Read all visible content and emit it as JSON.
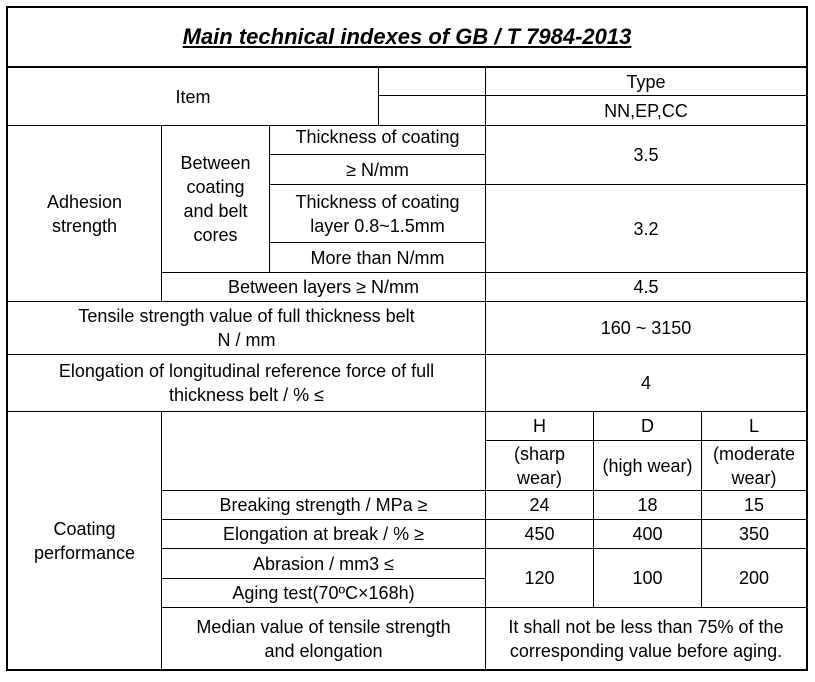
{
  "title": "Main technical indexes of GB / T 7984-2013",
  "header": {
    "item": "Item",
    "type": "Type",
    "type_values": "NN,EP,CC"
  },
  "adhesion": {
    "label": "Adhesion\nstrength",
    "sub_label": "Between\ncoating\nand belt\ncores",
    "thin_line1": "Thickness of coating",
    "thin_line2": "≥ N/mm",
    "thin_value": "3.5",
    "thick_line1": "Thickness of coating\nlayer 0.8~1.5mm",
    "thick_line2": "More than N/mm",
    "thick_value": "3.2",
    "between_layers": "Between layers  ≥ N/mm",
    "between_layers_value": "4.5"
  },
  "tensile": {
    "label": "Tensile strength value of full thickness belt\nN / mm",
    "value": "160 ~ 3150"
  },
  "elongation_ref": {
    "label": "Elongation of longitudinal reference force of full\nthickness belt  /  %  ≤",
    "value": "4"
  },
  "coating": {
    "label": "Coating\nperformance",
    "grades": [
      {
        "code": "H",
        "desc": "(sharp\nwear)"
      },
      {
        "code": "D",
        "desc": "(high wear)"
      },
      {
        "code": "L",
        "desc": "(moderate\nwear)"
      }
    ],
    "breaking": {
      "label": "Breaking strength   /  MPa ≥",
      "values": [
        "24",
        "18",
        "15"
      ]
    },
    "elong_break": {
      "label": "Elongation at break   /  %  ≥",
      "values": [
        "450",
        "400",
        "350"
      ]
    },
    "abrasion": {
      "label": "Abrasion          / mm3  ≤"
    },
    "aging": {
      "label": "Aging test(70ºC×168h)"
    },
    "abrasion_values": [
      "120",
      "100",
      "200"
    ],
    "median": {
      "label": "Median value of tensile strength\nand elongation",
      "value": "It shall not be less than 75% of the\ncorresponding value before aging."
    }
  }
}
